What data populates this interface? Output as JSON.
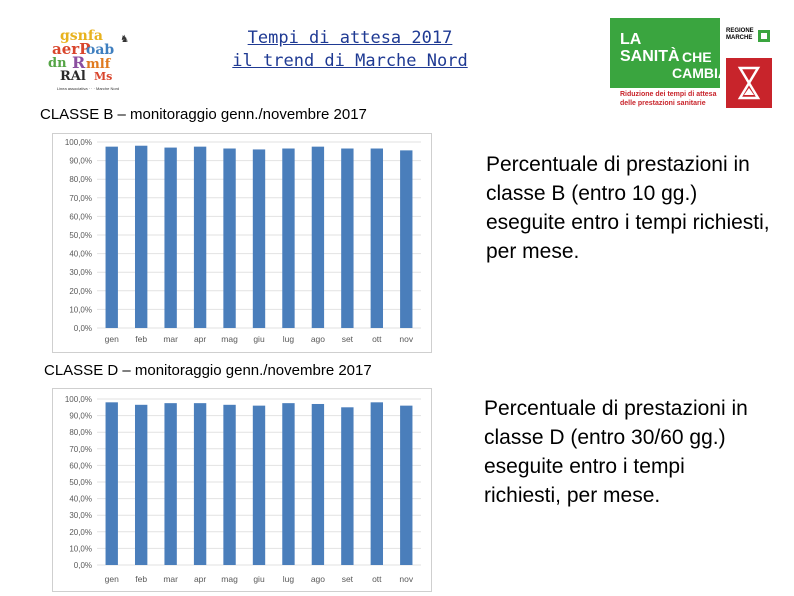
{
  "title": {
    "line1": "Tempi di attesa 2017",
    "line2": "il trend di Marche Nord"
  },
  "logo_right": {
    "line1": "LA",
    "line2": "SANITÀ",
    "line3": "CHE",
    "line4": "CAMBIA",
    "region": "REGIONE MARCHE",
    "caption": "Riduzione dei tempi di attesa delle prestazioni sanitarie",
    "brand_color": "#3aa53f",
    "accent_color": "#c8242b"
  },
  "sections": [
    {
      "label": "CLASSE B – monitoraggio genn./novembre 2017",
      "description": "Percentuale di prestazioni in classe B (entro 10 gg.) eseguite entro i tempi richiesti, per mese."
    },
    {
      "label": "CLASSE D – monitoraggio genn./novembre 2017",
      "description": "Percentuale di prestazioni in classe D (entro 30/60 gg.) eseguite entro i tempi richiesti, per mese."
    }
  ],
  "chart_data": [
    {
      "type": "bar",
      "categories": [
        "gen",
        "feb",
        "mar",
        "apr",
        "mag",
        "giu",
        "lug",
        "ago",
        "set",
        "ott",
        "nov"
      ],
      "values": [
        97.5,
        98.0,
        97.0,
        97.5,
        96.5,
        96.0,
        96.5,
        97.5,
        96.5,
        96.5,
        95.5
      ],
      "ylim": [
        0,
        100
      ],
      "yticks": [
        "0,0%",
        "10,0%",
        "20,0%",
        "30,0%",
        "40,0%",
        "50,0%",
        "60,0%",
        "70,0%",
        "80,0%",
        "90,0%",
        "100,0%"
      ],
      "bar_color": "#4a7ebb",
      "grid": true
    },
    {
      "type": "bar",
      "categories": [
        "gen",
        "feb",
        "mar",
        "apr",
        "mag",
        "giu",
        "lug",
        "ago",
        "set",
        "ott",
        "nov"
      ],
      "values": [
        98.0,
        96.5,
        97.5,
        97.5,
        96.5,
        96.0,
        97.5,
        97.0,
        95.0,
        98.0,
        96.0
      ],
      "ylim": [
        0,
        100
      ],
      "yticks": [
        "0,0%",
        "10,0%",
        "20,0%",
        "30,0%",
        "40,0%",
        "50,0%",
        "60,0%",
        "70,0%",
        "80,0%",
        "90,0%",
        "100,0%"
      ],
      "bar_color": "#4a7ebb",
      "grid": true
    }
  ]
}
